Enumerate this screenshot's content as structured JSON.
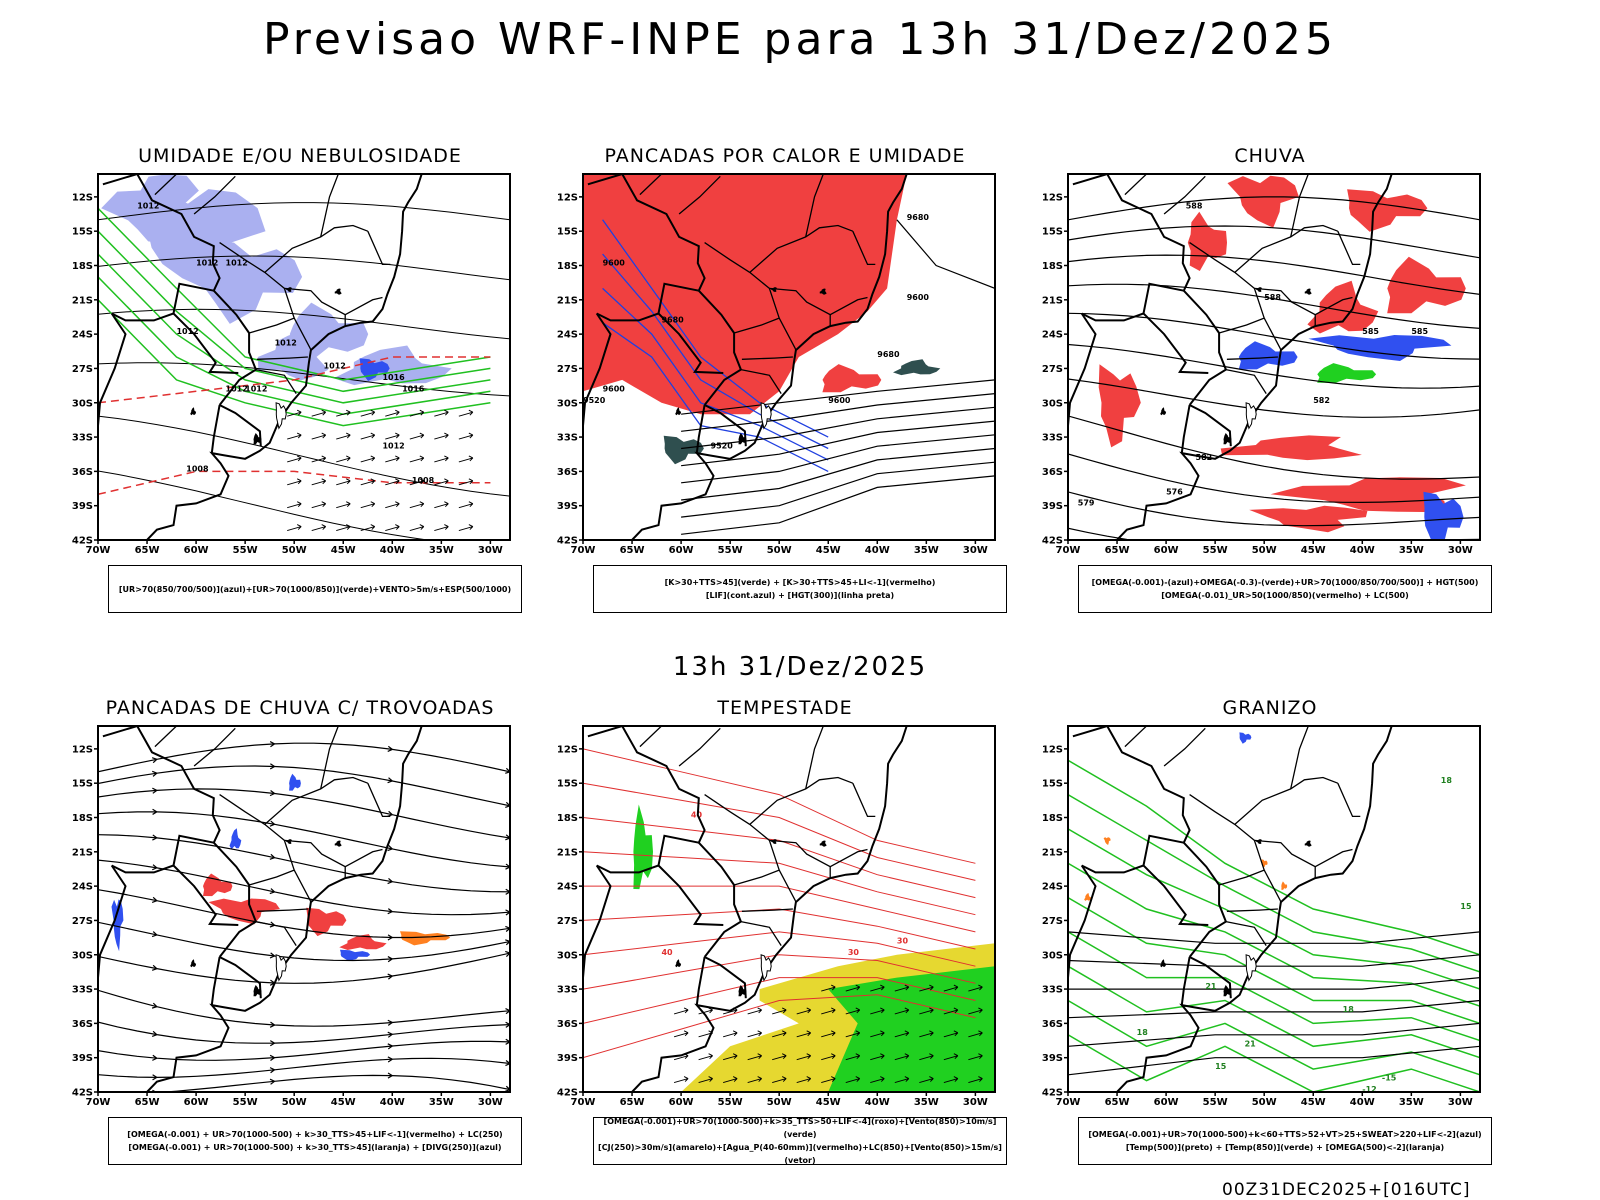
{
  "title": "Previsao WRF-INPE  para 13h 31/Dez/2025",
  "mid_time": "13h 31/Dez/2025",
  "footer": "00Z31DEC2025+[016UTC]",
  "axes": {
    "lat_labels": [
      "12S",
      "15S",
      "18S",
      "21S",
      "24S",
      "27S",
      "30S",
      "33S",
      "36S",
      "39S",
      "42S"
    ],
    "lon_labels": [
      "70W",
      "65W",
      "60W",
      "55W",
      "50W",
      "45W",
      "40W",
      "35W",
      "30W"
    ],
    "lat_range": [
      -42,
      -10
    ],
    "lon_range": [
      -70,
      -28
    ]
  },
  "colors": {
    "purple_fill": "#aab0f0",
    "red_fill": "#f04040",
    "blue_fill": "#3050f0",
    "green_fill": "#20d020",
    "yellow_fill": "#e6d830",
    "dark_teal": "#2f4f4f",
    "orange": "#ff8020",
    "green_line": "#20c020",
    "red_line": "#e03030",
    "blue_line": "#2040e0"
  },
  "panels": [
    {
      "id": "umidade",
      "title": "UMIDADE E/OU NEBULOSIDADE",
      "legend": [
        "[UR>70(850/700/500)](azul)+[UR>70(1000/850)](verde)+VENTO>5m/s+ESP(500/1000)"
      ],
      "contour_labels": [
        "1012",
        "1012",
        "1012",
        "1012",
        "1012",
        "1012",
        "1016",
        "1012",
        "1012",
        "1008",
        "1012",
        "1008",
        "1016"
      ]
    },
    {
      "id": "pancadas-calor",
      "title": "PANCADAS POR CALOR E UMIDADE",
      "legend": [
        "[K>30+TTS>45](verde) + [K>30+TTS>45+LI<-1](vermelho)",
        "[LIF](cont.azul) + [HGT(300)](linha preta)"
      ],
      "contour_labels": [
        "9680",
        "9600",
        "9680",
        "9600",
        "9520",
        "9680",
        "9600",
        "9520",
        "9600"
      ]
    },
    {
      "id": "chuva",
      "title": "CHUVA",
      "legend": [
        "[OMEGA(-0.001)-(azul)+OMEGA(-0.3)-(verde)+UR>70(1000/850/700/500)] + HGT(500)",
        "[OMEGA(-0.01)_UR>50(1000/850)(vermelho) + LC(500)"
      ],
      "contour_labels": [
        "588",
        "588",
        "585",
        "585",
        "582",
        "582",
        "579",
        "576"
      ]
    },
    {
      "id": "trovoadas",
      "title": "PANCADAS DE CHUVA C/ TROVOADAS",
      "legend": [
        "[OMEGA(-0.001) + UR>70(1000-500) + k>30_TTS>45+LIF<-1](vermelho) + LC(250)",
        "[OMEGA(-0.001) + UR>70(1000-500) + k>30_TTS>45](laranja) + [DIVG(250)](azul)"
      ],
      "contour_labels": []
    },
    {
      "id": "tempestade",
      "title": "TEMPESTADE",
      "legend": [
        "[OMEGA(-0.001)+UR>70(1000-500)+k>35_TTS>50+LIF<-4](roxo)+[Vento(850)>10m/s](verde)",
        "[CJ(250)>30m/s](amarelo)+[Agua_P(40-60mm)](vermelho)+LC(850)+[Vento(850)>15m/s](vetor)"
      ],
      "contour_labels": [
        "40",
        "30",
        "30",
        "40"
      ]
    },
    {
      "id": "granizo",
      "title": "GRANIZO",
      "legend": [
        "[OMEGA(-0.001)+UR>70(1000-500)+k<60+TTS>52+VT>25+SWEAT>220+LIF<-2](azul)",
        "[Temp(500)](preto) + [Temp(850)](verde) + [OMEGA(500)<-2](laranja)"
      ],
      "contour_labels": [
        "18",
        "21",
        "18",
        "15",
        "-15",
        "-12",
        "15",
        "18",
        "21"
      ]
    }
  ]
}
